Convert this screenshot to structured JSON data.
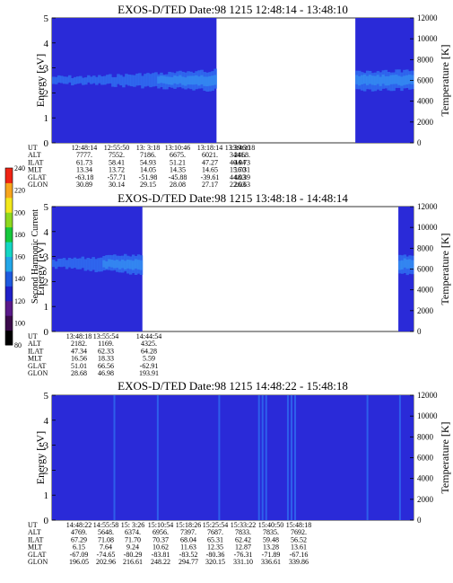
{
  "colors": {
    "background": "#2a2ad8",
    "band": "#2f6df0",
    "band_hi": "#37a6f4",
    "gap": "#ffffff",
    "colorbar": [
      "#000000",
      "#3a0a4a",
      "#5a1a8a",
      "#2020c8",
      "#1e5adf",
      "#23a6e8",
      "#14d6c4",
      "#16c83c",
      "#8ed81e",
      "#f2e81c",
      "#f7a51d",
      "#ef2414"
    ]
  },
  "colorbar": {
    "label": "Second Harmonic Current",
    "ticks": [
      "80",
      "100",
      "120",
      "140",
      "160",
      "180",
      "200",
      "220",
      "240"
    ]
  },
  "table_labels": [
    "UT",
    "ALT",
    "ILAT",
    "MLT",
    "GLAT",
    "GLON"
  ],
  "chart_data": [
    {
      "type": "heatmap",
      "title": "EXOS-D/TED   Date:98 1215   12:48:14 - 13:48:10",
      "ylabel": "Energy [eV]",
      "ylabel_right": "Temperature [K]",
      "ylim": [
        0,
        5
      ],
      "ylim_right": [
        0,
        12000
      ],
      "yticks": [
        "0",
        "1",
        "2",
        "3",
        "4",
        "5"
      ],
      "yticks_right": [
        "0",
        "2000",
        "4000",
        "6000",
        "8000",
        "10000",
        "12000"
      ],
      "data_segments": [
        [
          0.0,
          0.455
        ],
        [
          0.839,
          1.0
        ]
      ],
      "band": {
        "center_ev": 2.5,
        "intensity_rise": [
          0.1,
          0.45
        ]
      },
      "orbit_table": {
        "UT": [
          "12:48:14",
          "12:55:50",
          "13: 3:18",
          "13:10:46",
          "13:18:14",
          "13:39:30",
          "13:46:18"
        ],
        "ALT": [
          "7777.",
          "7552.",
          "7186.",
          "6675.",
          "6021.",
          "3441.",
          "2468."
        ],
        "ILAT": [
          "61.73",
          "58.41",
          "54.93",
          "51.21",
          "47.27",
          "40.94",
          "44.73"
        ],
        "MLT": [
          "13.34",
          "13.72",
          "14.05",
          "14.35",
          "14.65",
          "15.70",
          "16.31"
        ],
        "GLAT": [
          "-63.18",
          "-57.71",
          "-51.98",
          "-45.88",
          "-39.61",
          "44.03",
          "48.39"
        ],
        "GLON": [
          "30.89",
          "30.14",
          "29.15",
          "28.08",
          "27.17",
          "22.03",
          "26.63"
        ]
      }
    },
    {
      "type": "heatmap",
      "title": "EXOS-D/TED   Date:98 1215   13:48:18 - 14:48:14",
      "ylabel": "Energy [eV]",
      "ylabel_right": "Temperature [K]",
      "ylim": [
        0,
        5
      ],
      "ylim_right": [
        0,
        12000
      ],
      "yticks": [
        "0",
        "1",
        "2",
        "3",
        "4",
        "5"
      ],
      "yticks_right": [
        "0",
        "2000",
        "4000",
        "6000",
        "8000",
        "10000",
        "12000"
      ],
      "data_segments": [
        [
          0.0,
          0.25
        ],
        [
          0.958,
          1.0
        ]
      ],
      "band": {
        "center_ev": 2.7,
        "intensity_rise": [
          0.0,
          0.25
        ]
      },
      "orbit_table": {
        "UT": [
          "13:48:18",
          "13:55:54",
          "14:44:54"
        ],
        "ALT": [
          "2182.",
          "1169.",
          "4325."
        ],
        "ILAT": [
          "47.34",
          "62.33",
          "64.28"
        ],
        "MLT": [
          "16.56",
          "18.33",
          "5.59"
        ],
        "GLAT": [
          "51.01",
          "66.56",
          "-62.91"
        ],
        "GLON": [
          "28.68",
          "46.98",
          "193.91"
        ]
      }
    },
    {
      "type": "heatmap",
      "title": "EXOS-D/TED   Date:98 1215   14:48:22 - 15:48:18",
      "ylabel": "Energy [eV]",
      "ylabel_right": "Temperature [K]",
      "ylim": [
        0,
        5
      ],
      "ylim_right": [
        0,
        12000
      ],
      "yticks": [
        "0",
        "1",
        "2",
        "3",
        "4",
        "5"
      ],
      "yticks_right": [
        "0",
        "2000",
        "4000",
        "6000",
        "8000",
        "10000",
        "12000"
      ],
      "data_segments": [
        [
          0.0,
          1.0
        ]
      ],
      "band": {
        "center_ev": 0,
        "intensity_rise": [
          0,
          0
        ]
      },
      "orbit_table": {
        "UT": [
          "14:48:22",
          "14:55:58",
          "15: 3:26",
          "15:10:54",
          "15:18:26",
          "15:25:54",
          "15:33:22",
          "15:40:50",
          "15:48:18"
        ],
        "ALT": [
          "4769.",
          "5648.",
          "6374.",
          "6956.",
          "7397.",
          "7687.",
          "7833.",
          "7835.",
          "7692."
        ],
        "ILAT": [
          "67.29",
          "71.08",
          "71.70",
          "70.37",
          "68.04",
          "65.31",
          "62.42",
          "59.48",
          "56.52"
        ],
        "MLT": [
          "6.15",
          "7.64",
          "9.24",
          "10.62",
          "11.63",
          "12.35",
          "12.87",
          "13.28",
          "13.61"
        ],
        "GLAT": [
          "-67.09",
          "-74.65",
          "-80.29",
          "-83.81",
          "-83.52",
          "-80.36",
          "-76.31",
          "-71.89",
          "-67.16"
        ],
        "GLON": [
          "196.05",
          "202.96",
          "216.61",
          "248.22",
          "294.77",
          "320.15",
          "331.10",
          "336.61",
          "339.86"
        ]
      }
    }
  ]
}
